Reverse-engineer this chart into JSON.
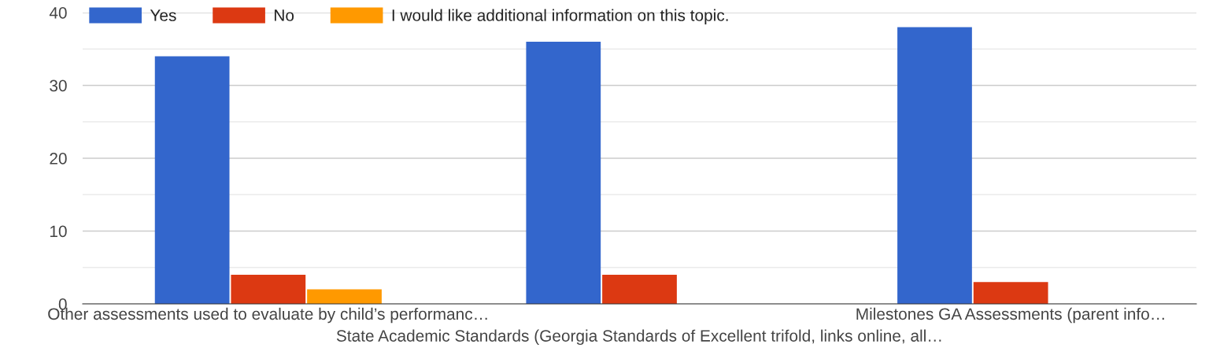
{
  "chart_data": {
    "type": "bar",
    "categories": [
      "Other assessments used to evaluate by child’s performanc…",
      "State Academic Standards (Georgia Standards of Excellent trifold, links online, all…",
      "Milestones GA Assessments (parent info…"
    ],
    "series": [
      {
        "name": "Yes",
        "color": "#3366cc",
        "values": [
          34,
          36,
          38
        ]
      },
      {
        "name": "No",
        "color": "#dc3912",
        "values": [
          4,
          4,
          3
        ]
      },
      {
        "name": "I would like additional information on this topic.",
        "color": "#ff9900",
        "values": [
          2,
          0,
          0
        ]
      }
    ],
    "ylim": [
      0,
      40
    ],
    "yticks": [
      0,
      10,
      20,
      30,
      40
    ],
    "grid": "y",
    "legend": "top left"
  }
}
